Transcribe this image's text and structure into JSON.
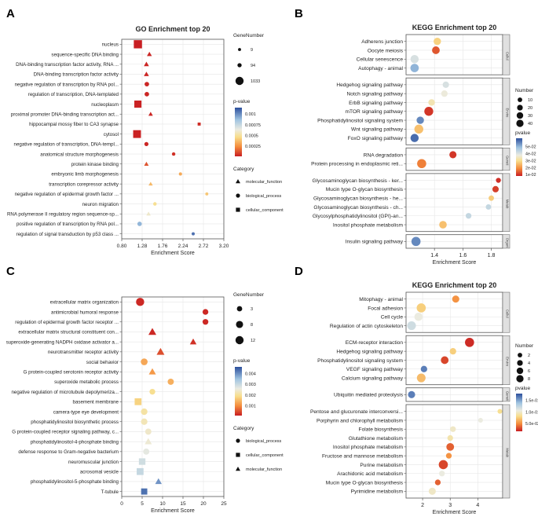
{
  "colors": {
    "grid": "#e6e6e6",
    "axis": "#555555",
    "strip": "#e0e0e0",
    "text": "#222222"
  },
  "chart_data": [
    {
      "id": "A",
      "panel_label": "A",
      "type": "scatter",
      "title": "GO Enrichment top 20",
      "xlabel": "Enrichment Score",
      "ylabel": "",
      "xlim": [
        0.8,
        3.2
      ],
      "xticks": [
        "0.80",
        "1.28",
        "1.76",
        "2.24",
        "2.72",
        "3.20"
      ],
      "points": [
        {
          "term": "nucleus",
          "x": 1.18,
          "size": 1033,
          "p": 1e-05,
          "cat": "cellular_component"
        },
        {
          "term": "sequence-specific DNA binding",
          "x": 1.45,
          "size": 100,
          "p": 3e-05,
          "cat": "molecular_function"
        },
        {
          "term": "DNA-binding transcription factor activity, RNA ...",
          "x": 1.38,
          "size": 120,
          "p": 3e-05,
          "cat": "molecular_function"
        },
        {
          "term": "DNA-binding transcription factor activity",
          "x": 1.38,
          "size": 120,
          "p": 3e-05,
          "cat": "molecular_function"
        },
        {
          "term": "negative regulation of transcription by RNA pol...",
          "x": 1.39,
          "size": 130,
          "p": 3e-05,
          "cat": "biological_process"
        },
        {
          "term": "regulation of transcription, DNA-templated",
          "x": 1.39,
          "size": 130,
          "p": 3e-05,
          "cat": "biological_process"
        },
        {
          "term": "nucleoplasm",
          "x": 1.18,
          "size": 700,
          "p": 2e-05,
          "cat": "cellular_component"
        },
        {
          "term": "proximal promoter DNA-binding transcription act...",
          "x": 1.48,
          "size": 60,
          "p": 3e-05,
          "cat": "molecular_function"
        },
        {
          "term": "hippocampal mossy fiber to CA3 synapse",
          "x": 2.62,
          "size": 9,
          "p": 5e-05,
          "cat": "cellular_component"
        },
        {
          "term": "cytosol",
          "x": 1.16,
          "size": 900,
          "p": 2e-05,
          "cat": "cellular_component"
        },
        {
          "term": "negative regulation of transcription, DNA-templ...",
          "x": 1.38,
          "size": 80,
          "p": 3e-05,
          "cat": "biological_process"
        },
        {
          "term": "anatomical structure morphogenesis",
          "x": 2.02,
          "size": 30,
          "p": 6e-05,
          "cat": "biological_process"
        },
        {
          "term": "protein kinase binding",
          "x": 1.38,
          "size": 70,
          "p": 0.00015,
          "cat": "molecular_function"
        },
        {
          "term": "embryonic limb morphogenesis",
          "x": 2.18,
          "size": 15,
          "p": 0.0004,
          "cat": "biological_process"
        },
        {
          "term": "transcription corepressor activity",
          "x": 1.48,
          "size": 45,
          "p": 0.00045,
          "cat": "molecular_function"
        },
        {
          "term": "negative regulation of epidermal growth factor ...",
          "x": 2.8,
          "size": 9,
          "p": 0.0005,
          "cat": "biological_process"
        },
        {
          "term": "neuron migration",
          "x": 1.58,
          "size": 35,
          "p": 0.0006,
          "cat": "biological_process"
        },
        {
          "term": "RNA polymerase II regulatory region sequence-sp...",
          "x": 1.43,
          "size": 60,
          "p": 0.00075,
          "cat": "molecular_function"
        },
        {
          "term": "positive regulation of transcription by RNA pol...",
          "x": 1.22,
          "size": 120,
          "p": 0.001,
          "cat": "biological_process"
        },
        {
          "term": "regulation of signal transduction by p53 class ...",
          "x": 2.48,
          "size": 12,
          "p": 0.0011,
          "cat": "biological_process"
        }
      ],
      "size_legend": {
        "title": "GeneNumber",
        "values": [
          9,
          94,
          1033
        ],
        "labels": [
          "9",
          "94",
          "1033"
        ],
        "max": 1033
      },
      "color_legend": {
        "title": "p-value",
        "labels": [
          "0.001",
          "0.00075",
          "0.0005",
          "0.00025"
        ],
        "values": [
          0.001,
          0.00075,
          0.0005,
          0.00025
        ],
        "min": 1e-05,
        "max": 0.00115
      },
      "category_legend": {
        "title": "Category",
        "items": [
          {
            "label": "molecular_function",
            "shape": "triangle"
          },
          {
            "label": "biological_process",
            "shape": "circle"
          },
          {
            "label": "cellular_component",
            "shape": "square"
          }
        ]
      }
    },
    {
      "id": "B",
      "panel_label": "B",
      "type": "scatter",
      "title": "KEGG Enrichment top 20",
      "xlabel": "Enrichment Score",
      "xlim": [
        1.2,
        1.88
      ],
      "xticks": [
        "1.4",
        "1.6",
        "1.8"
      ],
      "xtick_values": [
        1.4,
        1.6,
        1.8
      ],
      "groups": [
        {
          "name": "Cellul",
          "terms": [
            {
              "term": "Adherens junction",
              "x": 1.42,
              "size": 22,
              "p": 0.033
            },
            {
              "term": "Oocyte meiosis",
              "x": 1.41,
              "size": 25,
              "p": 0.015
            },
            {
              "term": "Cellular senescence",
              "x": 1.26,
              "size": 30,
              "p": 0.048
            },
            {
              "term": "Autophagy - animal",
              "x": 1.26,
              "size": 32,
              "p": 0.055
            }
          ]
        },
        {
          "name": "Enviro",
          "terms": [
            {
              "term": "Hedgehog signaling pathway",
              "x": 1.48,
              "size": 14,
              "p": 0.048
            },
            {
              "term": "Notch signaling pathway",
              "x": 1.47,
              "size": 15,
              "p": 0.045
            },
            {
              "term": "ErbB signaling pathway",
              "x": 1.38,
              "size": 16,
              "p": 0.04
            },
            {
              "term": "mTOR signaling pathway",
              "x": 1.36,
              "size": 38,
              "p": 0.011
            },
            {
              "term": "Phosphatidylinositol signaling system",
              "x": 1.3,
              "size": 22,
              "p": 0.058
            },
            {
              "term": "Wnt signaling pathway",
              "x": 1.29,
              "size": 38,
              "p": 0.03
            },
            {
              "term": "FoxO signaling pathway",
              "x": 1.26,
              "size": 30,
              "p": 0.06
            }
          ]
        },
        {
          "name": "Geneti",
          "terms": [
            {
              "term": "RNA degradation",
              "x": 1.53,
              "size": 20,
              "p": 0.011
            },
            {
              "term": "Protein processing in endoplasmic reti...",
              "x": 1.31,
              "size": 40,
              "p": 0.02
            }
          ]
        },
        {
          "name": "Metab",
          "terms": [
            {
              "term": "Glycosaminoglycan biosynthesis - ker...",
              "x": 1.85,
              "size": 6,
              "p": 0.01
            },
            {
              "term": "Mucin type O-glycan biosynthesis",
              "x": 1.83,
              "size": 14,
              "p": 0.012
            },
            {
              "term": "Glycosaminoglycan biosynthesis - he...",
              "x": 1.8,
              "size": 8,
              "p": 0.032
            },
            {
              "term": "Glycosaminoglycan biosynthesis - ch...",
              "x": 1.78,
              "size": 8,
              "p": 0.05
            },
            {
              "term": "Glycosylphosphatidylinositol (GPI)-an...",
              "x": 1.64,
              "size": 10,
              "p": 0.05
            },
            {
              "term": "Inositol phosphate metabolism",
              "x": 1.46,
              "size": 24,
              "p": 0.03
            }
          ]
        },
        {
          "name": "Organi",
          "terms": [
            {
              "term": "Insulin signaling pathway",
              "x": 1.27,
              "size": 40,
              "p": 0.058
            }
          ]
        }
      ],
      "size_legend": {
        "title": "Number",
        "values": [
          10,
          20,
          30,
          40
        ],
        "labels": [
          "10",
          "20",
          "30",
          "40"
        ],
        "max": 40
      },
      "color_legend": {
        "title": "pvalue",
        "labels": [
          "5e-02",
          "4e-02",
          "3e-02",
          "2e-02",
          "1e-02"
        ],
        "values": [
          0.05,
          0.04,
          0.03,
          0.02,
          0.01
        ],
        "min": 0.008,
        "max": 0.062
      }
    },
    {
      "id": "C",
      "panel_label": "C",
      "type": "scatter",
      "title": "",
      "xlabel": "Enrichment Score",
      "xlim": [
        0,
        25
      ],
      "xticks": [
        "0",
        "5",
        "10",
        "15",
        "20",
        "25"
      ],
      "points": [
        {
          "term": "extracellular matrix organization",
          "x": 4.5,
          "size": 12,
          "p": 0.0002,
          "cat": "biological_process"
        },
        {
          "term": "antimicrobial humoral response",
          "x": 20.5,
          "size": 4,
          "p": 0.0002,
          "cat": "biological_process"
        },
        {
          "term": "regulation of epidermal growth factor receptor ...",
          "x": 20.5,
          "size": 4,
          "p": 0.0002,
          "cat": "biological_process"
        },
        {
          "term": "extracellular matrix structural constituent con...",
          "x": 7.5,
          "size": 7,
          "p": 0.0002,
          "cat": "molecular_function"
        },
        {
          "term": "superoxide-generating NADPH oxidase activator a...",
          "x": 17.5,
          "size": 4,
          "p": 0.0003,
          "cat": "molecular_function"
        },
        {
          "term": "neurotransmitter receptor activity",
          "x": 9.5,
          "size": 7,
          "p": 0.0006,
          "cat": "molecular_function"
        },
        {
          "term": "social behavior",
          "x": 5.5,
          "size": 7,
          "p": 0.0016,
          "cat": "biological_process"
        },
        {
          "term": "G protein-coupled serotonin receptor activity",
          "x": 7.5,
          "size": 5,
          "p": 0.0014,
          "cat": "molecular_function"
        },
        {
          "term": "superoxide metabolic process",
          "x": 12.0,
          "size": 5,
          "p": 0.0017,
          "cat": "biological_process"
        },
        {
          "term": "negative regulation of microtubule depolymeriza...",
          "x": 7.5,
          "size": 4,
          "p": 0.0024,
          "cat": "biological_process"
        },
        {
          "term": "basement membrane",
          "x": 4.0,
          "size": 7,
          "p": 0.0022,
          "cat": "cellular_component"
        },
        {
          "term": "camera-type eye development",
          "x": 5.5,
          "size": 6,
          "p": 0.0026,
          "cat": "biological_process"
        },
        {
          "term": "phosphatidylinositol biosynthetic process",
          "x": 5.5,
          "size": 6,
          "p": 0.0028,
          "cat": "biological_process"
        },
        {
          "term": "G protein-coupled receptor signaling pathway, c...",
          "x": 6.5,
          "size": 5,
          "p": 0.003,
          "cat": "biological_process"
        },
        {
          "term": "phosphatidylinositol-4-phosphate binding",
          "x": 6.5,
          "size": 5,
          "p": 0.0031,
          "cat": "molecular_function"
        },
        {
          "term": "defense response to Gram-negative bacterium",
          "x": 6.0,
          "size": 5,
          "p": 0.0033,
          "cat": "biological_process"
        },
        {
          "term": "neuromuscular junction",
          "x": 5.0,
          "size": 6,
          "p": 0.0035,
          "cat": "cellular_component"
        },
        {
          "term": "acrosomal vesicle",
          "x": 4.5,
          "size": 7,
          "p": 0.0036,
          "cat": "cellular_component"
        },
        {
          "term": "phosphatidylinositol-5-phosphate binding",
          "x": 9.0,
          "size": 4,
          "p": 0.0042,
          "cat": "molecular_function"
        },
        {
          "term": "T-tubule",
          "x": 5.5,
          "size": 5,
          "p": 0.0044,
          "cat": "cellular_component"
        }
      ],
      "size_legend": {
        "title": "GeneNumber",
        "values": [
          3,
          8,
          12
        ],
        "labels": [
          "3",
          "8",
          "12"
        ],
        "max": 12
      },
      "color_legend": {
        "title": "p-value",
        "labels": [
          "0.004",
          "0.003",
          "0.002",
          "0.001"
        ],
        "values": [
          0.004,
          0.003,
          0.002,
          0.001
        ],
        "min": 0.0001,
        "max": 0.0046
      },
      "category_legend": {
        "title": "Category",
        "items": [
          {
            "label": "biological_process",
            "shape": "circle"
          },
          {
            "label": "cellular_component",
            "shape": "square"
          },
          {
            "label": "molecular_function",
            "shape": "triangle"
          }
        ]
      }
    },
    {
      "id": "D",
      "panel_label": "D",
      "type": "scatter",
      "title": "KEGG Enrichment top 20",
      "xlabel": "Enrichment Score",
      "xlim": [
        1.4,
        4.9
      ],
      "xticks": [
        "2",
        "3",
        "4"
      ],
      "xtick_values": [
        2,
        3,
        4
      ],
      "groups": [
        {
          "name": "Cellul",
          "terms": [
            {
              "term": "Mitophagy - animal",
              "x": 3.2,
              "size": 4,
              "p": 0.06
            },
            {
              "term": "Focal adhesion",
              "x": 1.95,
              "size": 8,
              "p": 0.09
            },
            {
              "term": "Cell cycle",
              "x": 1.85,
              "size": 6,
              "p": 0.13
            },
            {
              "term": "Regulation of actin cytoskeleton",
              "x": 1.6,
              "size": 7,
              "p": 0.14
            }
          ]
        },
        {
          "name": "Enviro",
          "terms": [
            {
              "term": "ECM-receptor interaction",
              "x": 3.7,
              "size": 8,
              "p": 0.02
            },
            {
              "term": "Hedgehog signaling pathway",
              "x": 3.1,
              "size": 3,
              "p": 0.09
            },
            {
              "term": "Phosphatidylinositol signaling system",
              "x": 2.8,
              "size": 5,
              "p": 0.03
            },
            {
              "term": "VEGF signaling pathway",
              "x": 2.05,
              "size": 3,
              "p": 0.17
            },
            {
              "term": "Calcium signaling pathway",
              "x": 1.95,
              "size": 7,
              "p": 0.08
            }
          ]
        },
        {
          "name": "Geneti",
          "terms": [
            {
              "term": "Ubiquitin mediated proteolysis",
              "x": 1.6,
              "size": 4,
              "p": 0.17
            }
          ]
        },
        {
          "name": "Metab",
          "terms": [
            {
              "term": "Pentose and glucuronate interconversi...",
              "x": 4.8,
              "size": 1,
              "p": 0.1
            },
            {
              "term": "Porphyrin and chlorophyll metabolism",
              "x": 4.1,
              "size": 1,
              "p": 0.13
            },
            {
              "term": "Folate biosynthesis",
              "x": 3.1,
              "size": 2,
              "p": 0.12
            },
            {
              "term": "Glutathione metabolism",
              "x": 3.0,
              "size": 2,
              "p": 0.11
            },
            {
              "term": "Inositol phosphate metabolism",
              "x": 3.0,
              "size": 5,
              "p": 0.04
            },
            {
              "term": "Fructose and mannose metabolism",
              "x": 2.95,
              "size": 2,
              "p": 0.06
            },
            {
              "term": "Purine metabolism",
              "x": 2.75,
              "size": 8,
              "p": 0.03
            },
            {
              "term": "Arachidonic acid metabolism",
              "x": 2.7,
              "size": 2,
              "p": 0.13
            },
            {
              "term": "Mucin type O-glycan biosynthesis",
              "x": 2.55,
              "size": 2,
              "p": 0.04
            },
            {
              "term": "Pyrimidine metabolism",
              "x": 2.35,
              "size": 4,
              "p": 0.12
            }
          ]
        }
      ],
      "size_legend": {
        "title": "Number",
        "values": [
          2,
          4,
          6,
          8
        ],
        "labels": [
          "2",
          "4",
          "6",
          "8"
        ],
        "max": 8
      },
      "color_legend": {
        "title": "pvalue",
        "labels": [
          "1.5e-01",
          "1.0e-01",
          "5.0e-02"
        ],
        "values": [
          0.15,
          0.1,
          0.05
        ],
        "min": 0.015,
        "max": 0.18
      }
    }
  ]
}
